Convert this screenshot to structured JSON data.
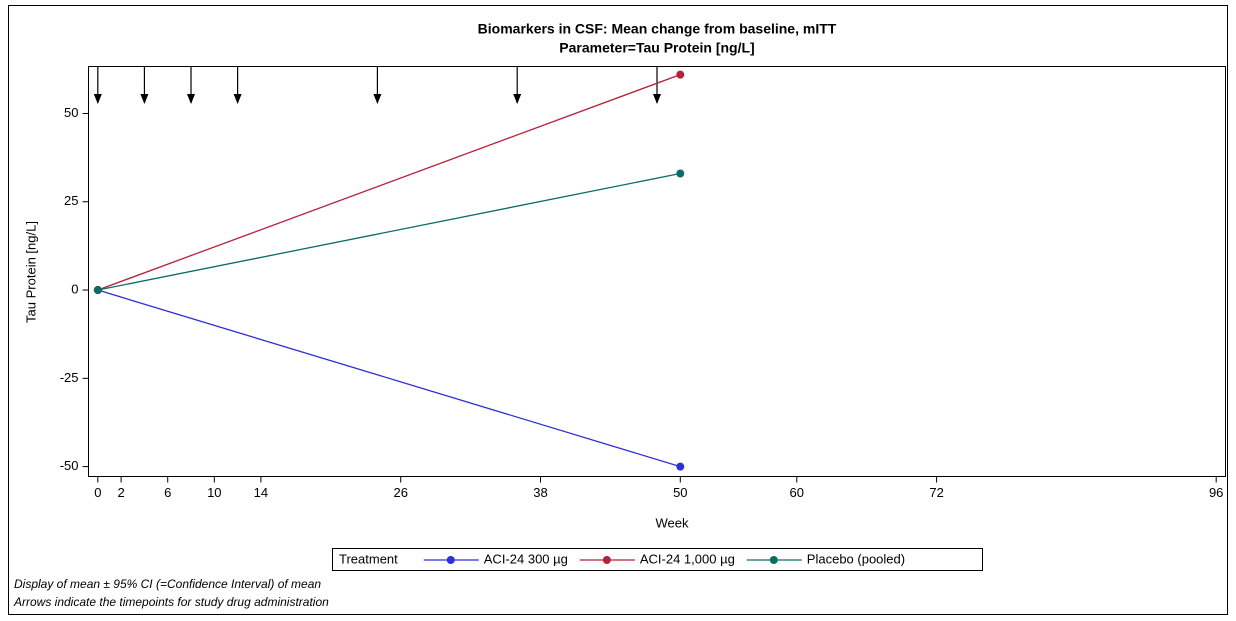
{
  "chart_data": {
    "type": "line",
    "title": "Biomarkers in CSF: Mean change from baseline, mITT",
    "subtitle": "Parameter=Tau Protein [ng/L]",
    "x_label": "Week",
    "y_label": "Tau Protein [ng/L]",
    "x": [
      0,
      50
    ],
    "series": [
      {
        "name": "ACI-24 300 µg",
        "color": "#2f2fd8",
        "values": [
          0,
          -50
        ]
      },
      {
        "name": "ACI-24 1,000 µg",
        "color": "#b5203a",
        "values": [
          0,
          61
        ]
      },
      {
        "name": "Placebo (pooled)",
        "color": "#0b6e66",
        "values": [
          0,
          33
        ]
      }
    ],
    "arrows_x": [
      0,
      4,
      8,
      12,
      24,
      36,
      48
    ],
    "xlim": [
      -0.8,
      96.8
    ],
    "xticks": [
      0,
      2,
      6,
      10,
      14,
      26,
      38,
      50,
      60,
      72,
      96
    ],
    "ylim": [
      -52.8,
      63.3
    ],
    "yticks": [
      -50,
      -25,
      0,
      25,
      50
    ],
    "legend_title": "Treatment",
    "notes": [
      "Display of mean ± 95% CI (=Confidence Interval) of mean",
      "Arrows indicate the timepoints for study drug administration"
    ]
  }
}
